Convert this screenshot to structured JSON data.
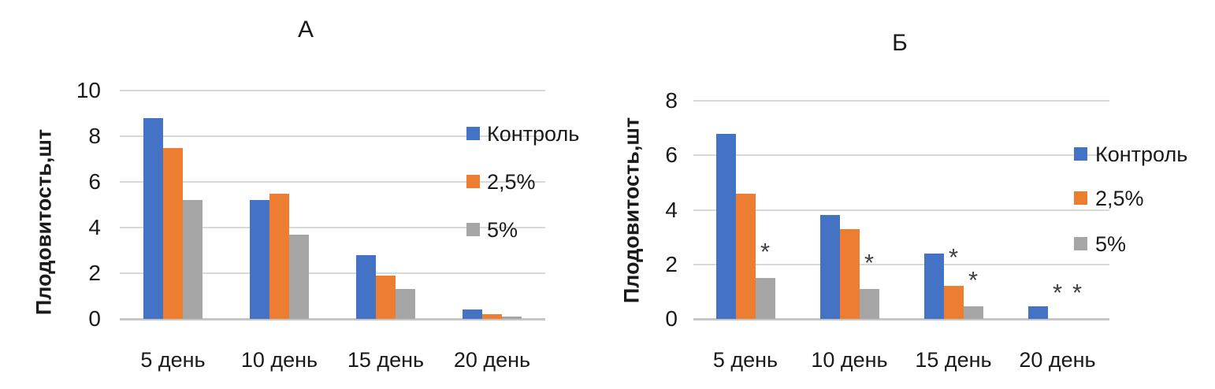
{
  "figure": {
    "background": "#ffffff"
  },
  "palette": {
    "series_colors": [
      "#4472C4",
      "#ED7D31",
      "#A5A5A5"
    ],
    "gridline": "#D9D9D9",
    "axis_line": "#C6C6C6",
    "text": "#1a1a1a",
    "annotation": "#3f3f3f"
  },
  "chart_data": [
    {
      "type": "bar",
      "title": "А",
      "ylabel": "Плодовитость,шт",
      "categories": [
        "5 день",
        "10 день",
        "15 день",
        "20 день"
      ],
      "series": [
        {
          "name": "Контроль",
          "values": [
            8.8,
            5.2,
            2.8,
            0.4
          ]
        },
        {
          "name": "2,5%",
          "values": [
            7.5,
            5.5,
            1.9,
            0.2
          ]
        },
        {
          "name": "5%",
          "values": [
            5.2,
            3.7,
            1.3,
            0.1
          ]
        }
      ],
      "ylim": [
        0,
        10
      ],
      "yticks": [
        0,
        2,
        4,
        6,
        8,
        10
      ],
      "grid": true,
      "legend_position": "right-inside",
      "annotations": []
    },
    {
      "type": "bar",
      "title": "Б",
      "ylabel": "Плодовитость,шт",
      "categories": [
        "5 день",
        "10 день",
        "15 день",
        "20 день"
      ],
      "series": [
        {
          "name": "Контроль",
          "values": [
            6.8,
            3.8,
            2.4,
            0.45
          ]
        },
        {
          "name": "2,5%",
          "values": [
            4.6,
            3.3,
            1.2,
            0
          ]
        },
        {
          "name": "5%",
          "values": [
            1.5,
            1.1,
            0.45,
            0
          ]
        }
      ],
      "ylim": [
        0,
        8
      ],
      "yticks": [
        0,
        2,
        4,
        6,
        8
      ],
      "grid": true,
      "legend_position": "right-inside",
      "annotations": [
        {
          "text": "*",
          "category_index": 0,
          "series_index": 2,
          "value": 2.55
        },
        {
          "text": "*",
          "category_index": 1,
          "series_index": 2,
          "value": 2.15
        },
        {
          "text": "*",
          "category_index": 2,
          "series_index": 1,
          "value": 2.35
        },
        {
          "text": "*",
          "category_index": 2,
          "series_index": 2,
          "value": 1.5
        },
        {
          "text": "*",
          "category_index": 3,
          "series_index": 1,
          "value": 1.05
        },
        {
          "text": "*",
          "category_index": 3,
          "series_index": 2,
          "value": 1.05
        }
      ]
    }
  ]
}
